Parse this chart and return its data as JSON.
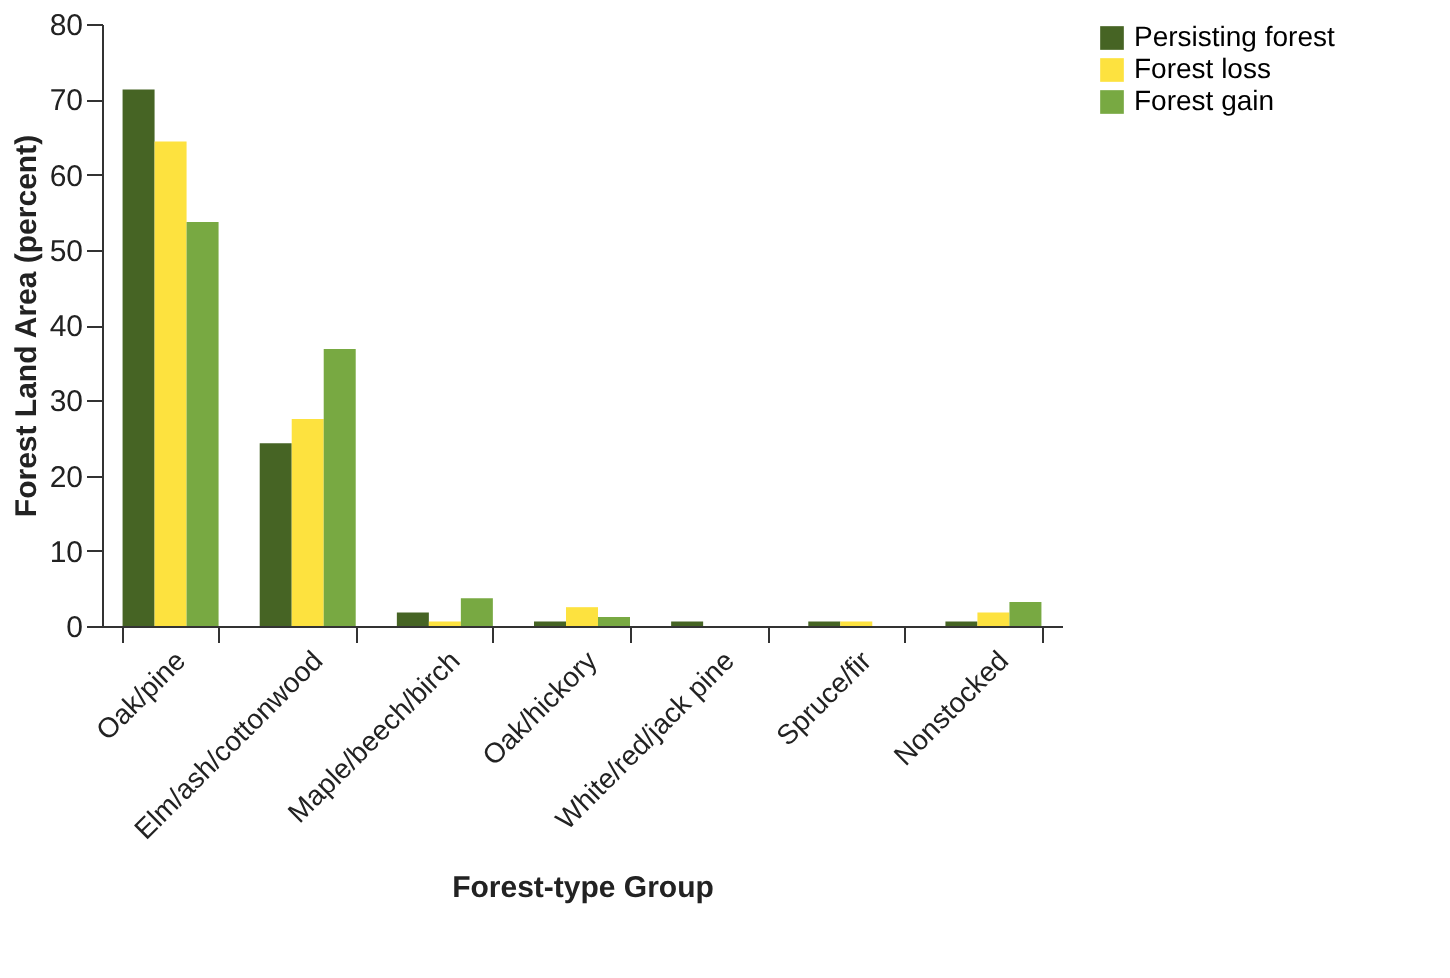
{
  "chart_data": {
    "type": "bar",
    "xlabel": "Forest-type Group",
    "ylabel": "Forest Land Area (percent)",
    "categories": [
      "Oak/pine",
      "Elm/ash/cottonwood",
      "Maple/beech/birch",
      "Oak/hickory",
      "White/red/jack pine",
      "Spruce/fir",
      "Nonstocked"
    ],
    "series": [
      {
        "name": "Persisting forest",
        "color": "#466424",
        "values": [
          71.3,
          24.3,
          1.8,
          0.6,
          0.6,
          0.6,
          0.6
        ]
      },
      {
        "name": "Forest loss",
        "color": "#fde23f",
        "values": [
          64.4,
          27.5,
          0.6,
          2.5,
          0,
          0.6,
          1.8
        ]
      },
      {
        "name": "Forest gain",
        "color": "#78a942",
        "values": [
          53.7,
          36.8,
          3.7,
          1.2,
          0,
          0,
          3.2
        ]
      }
    ],
    "ylim": [
      0,
      80
    ],
    "yticks": [
      0,
      10,
      20,
      30,
      40,
      50,
      60,
      70,
      80
    ],
    "grid": false,
    "legend": "right"
  }
}
